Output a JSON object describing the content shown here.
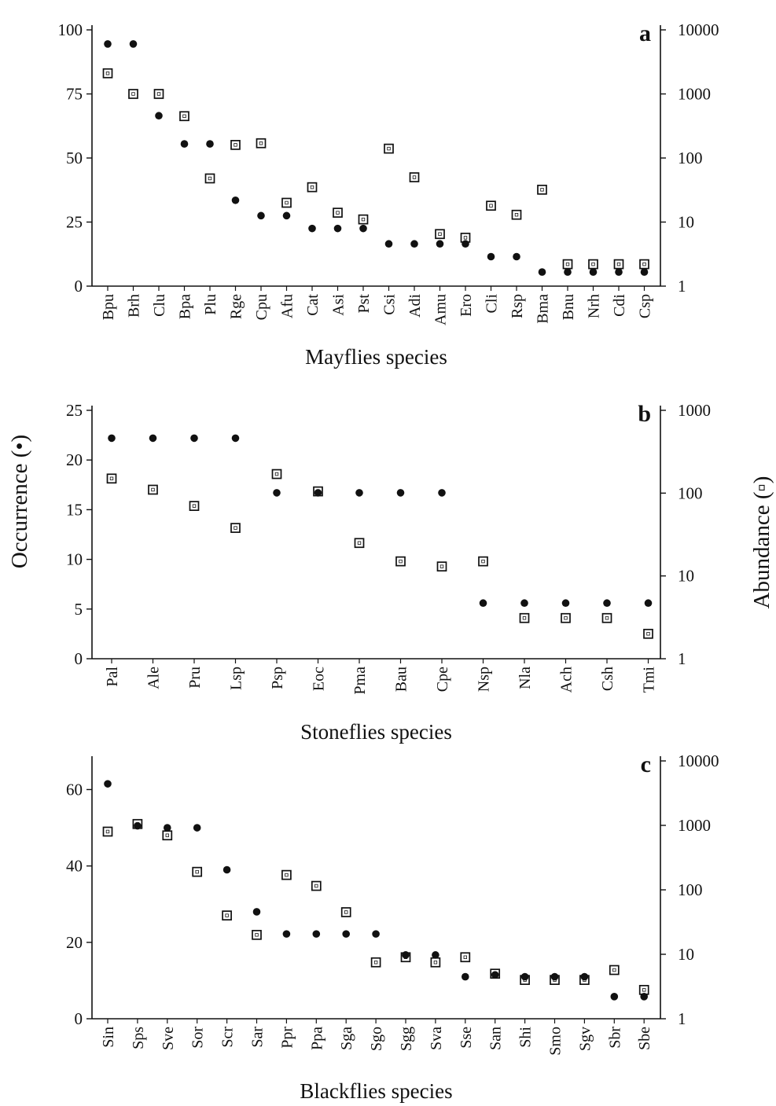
{
  "y_label_left": "Occurrence (•)",
  "y_label_right": "Abundance (▫)",
  "chart_data": [
    {
      "type": "scatter",
      "panel_label": "a",
      "xlabel": "Mayflies species",
      "categories": [
        "Bpu",
        "Brh",
        "Clu",
        "Bpa",
        "Plu",
        "Rge",
        "Cpu",
        "Afu",
        "Cat",
        "Asi",
        "Pst",
        "Csi",
        "Adi",
        "Amu",
        "Ero",
        "Cli",
        "Rsp",
        "Bma",
        "Bnu",
        "Nrh",
        "Cdi",
        "Csp"
      ],
      "occurrence": [
        94.5,
        94.5,
        66.5,
        55.5,
        55.5,
        33.5,
        27.5,
        27.5,
        22.5,
        22.5,
        22.5,
        16.5,
        16.5,
        16.5,
        16.5,
        11.5,
        11.5,
        5.5,
        5.5,
        5.5,
        5.5,
        5.5
      ],
      "abundance": [
        2100,
        1000,
        1000,
        450,
        48,
        160,
        170,
        20,
        35,
        14,
        11,
        140,
        50,
        6.5,
        5.7,
        18,
        13,
        32,
        2.2,
        2.2,
        2.2,
        2.2
      ],
      "ylim_left": [
        0,
        100
      ],
      "ylim_right": [
        1,
        10000
      ],
      "left_ticks": [
        0,
        25,
        50,
        75,
        100
      ],
      "right_ticks": [
        "1",
        "10",
        "100",
        "1000",
        "10000"
      ]
    },
    {
      "type": "scatter",
      "panel_label": "b",
      "xlabel": "Stoneflies species",
      "categories": [
        "Pal",
        "Ale",
        "Pru",
        "Lsp",
        "Psp",
        "Eoc",
        "Pma",
        "Bau",
        "Cpe",
        "Nsp",
        "Nla",
        "Ach",
        "Csh",
        "Tmi"
      ],
      "occurrence": [
        22.2,
        22.2,
        22.2,
        22.2,
        16.7,
        16.7,
        16.7,
        16.7,
        16.7,
        5.6,
        5.6,
        5.6,
        5.6,
        5.6
      ],
      "abundance": [
        150,
        110,
        70,
        38,
        170,
        105,
        25,
        15,
        13,
        15,
        3.1,
        3.1,
        3.1,
        2.0
      ],
      "ylim_left": [
        0,
        25
      ],
      "ylim_right": [
        1,
        1000
      ],
      "left_ticks": [
        0,
        5,
        10,
        15,
        20,
        25
      ],
      "right_ticks": [
        "1",
        "10",
        "100",
        "1000"
      ]
    },
    {
      "type": "scatter",
      "panel_label": "c",
      "xlabel": "Blackflies species",
      "categories": [
        "Sin",
        "Sps",
        "Sve",
        "Sor",
        "Scr",
        "Sar",
        "Ppr",
        "Ppa",
        "Sga",
        "Sgo",
        "Sgg",
        "Sva",
        "Sse",
        "San",
        "Shi",
        "Smo",
        "Sgv",
        "Sbr",
        "Sbe"
      ],
      "occurrence": [
        61.5,
        50.5,
        50,
        50,
        39,
        28,
        22.2,
        22.2,
        22.2,
        22.2,
        16.7,
        16.7,
        11,
        11.5,
        11,
        11,
        11,
        5.8,
        5.8
      ],
      "abundance": [
        800,
        1050,
        700,
        190,
        40,
        20,
        170,
        115,
        45,
        7.5,
        9,
        7.5,
        9,
        5,
        4,
        4,
        4,
        5.7,
        2.8
      ],
      "ylim_left": [
        0,
        67.5
      ],
      "ylim_right": [
        1,
        10000
      ],
      "left_ticks": [
        0,
        20,
        40,
        60
      ],
      "right_ticks": [
        "1",
        "10",
        "100",
        "1000",
        "10000"
      ]
    }
  ]
}
